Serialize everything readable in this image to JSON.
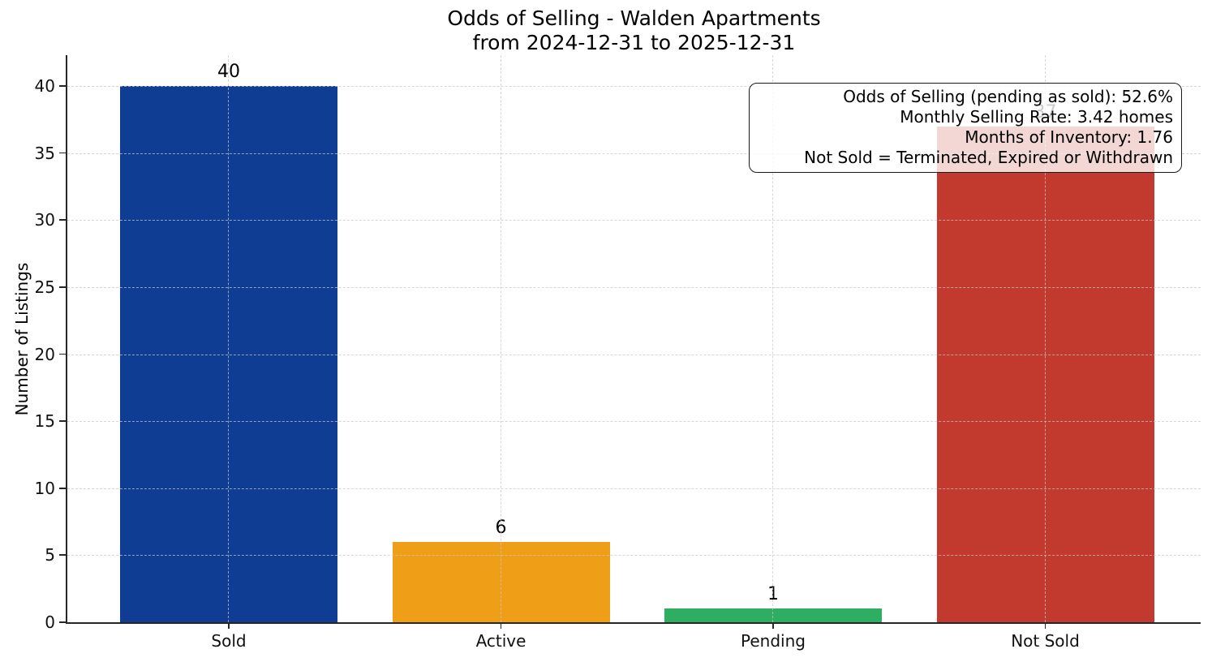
{
  "chart_data": {
    "type": "bar",
    "title": "Odds of Selling - Walden Apartments",
    "subtitle": "from 2024-12-31 to 2025-12-31",
    "xlabel": "",
    "ylabel": "Number of Listings",
    "categories": [
      "Sold",
      "Active",
      "Pending",
      "Not Sold"
    ],
    "values": [
      40,
      6,
      1,
      37
    ],
    "bar_value_labels": [
      "40",
      "6",
      "1",
      "37"
    ],
    "bar_colors": [
      "#0f3d94",
      "#ef9e18",
      "#2eae60",
      "#c23a2d"
    ],
    "yticks": [
      0,
      5,
      10,
      15,
      20,
      25,
      30,
      35,
      40
    ],
    "ylim": [
      0,
      42.3
    ],
    "grid": "dashed, horizontal at y-ticks and vertical at category centers, drawn over bars",
    "legend": "none",
    "annotation_box": {
      "position": "top-right",
      "lines": [
        "Odds of Selling (pending as sold): 52.6%",
        "Monthly Selling Rate: 3.42 homes",
        "Months of Inventory: 1.76",
        "Not Sold = Terminated, Expired or Withdrawn"
      ]
    }
  }
}
